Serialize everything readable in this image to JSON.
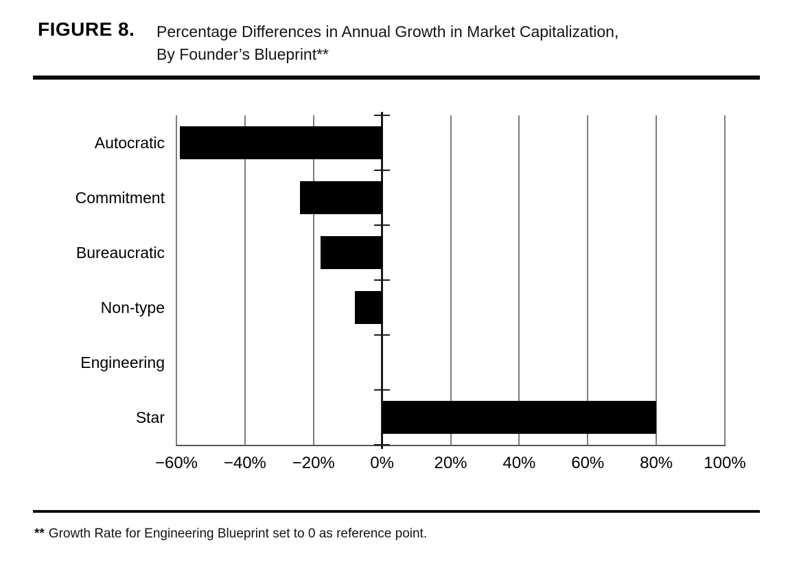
{
  "header": {
    "figure_label": "FIGURE 8.",
    "title_line1": "Percentage Differences in Annual Growth in Market Capitalization,",
    "title_line2": "By Founder’s Blueprint**"
  },
  "footnote": {
    "marker": "**",
    "text": "Growth Rate for Engineering Blueprint set to 0 as reference point."
  },
  "colors": {
    "bar": "#000000",
    "gridline": "#7d7d7d",
    "zero_axis": "#1a1a1a",
    "baseline": "#555555",
    "text": "#000000"
  },
  "chart_data": {
    "type": "bar",
    "orientation": "horizontal",
    "title": "Percentage Differences in Annual Growth in Market Capitalization, By Founder’s Blueprint**",
    "categories": [
      "Autocratic",
      "Commitment",
      "Bureaucratic",
      "Non-type",
      "Engineering",
      "Star"
    ],
    "values": [
      -59,
      -24,
      -18,
      -8,
      0,
      80
    ],
    "unit": "%",
    "xlabel": "",
    "ylabel": "",
    "xlim": [
      -60,
      100
    ],
    "x_ticks": [
      -60,
      -40,
      -20,
      0,
      20,
      40,
      60,
      80,
      100
    ],
    "x_tick_labels": [
      "−60%",
      "−40%",
      "−20%",
      "0%",
      "20%",
      "40%",
      "60%",
      "80%",
      "100%"
    ],
    "grid": "vertical-only",
    "legend": "none",
    "bar_color": "#000000",
    "reference_note": "Growth Rate for Engineering Blueprint set to 0 as reference point."
  }
}
